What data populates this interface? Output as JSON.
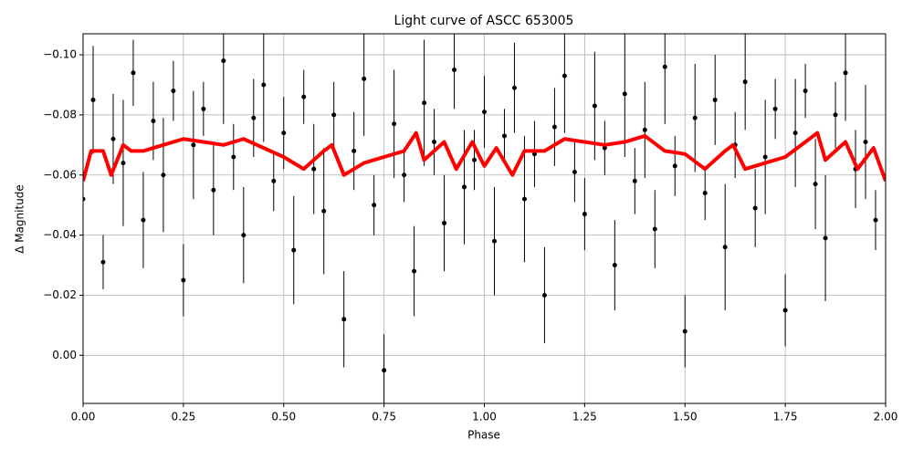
{
  "chart_data": {
    "type": "scatter",
    "title": "Light curve of ASCC 653005",
    "x_label": "Phase",
    "y_label": "Δ Magnitude",
    "xlim": [
      0,
      2
    ],
    "ylim": [
      0.016,
      -0.107
    ],
    "xticks": [
      {
        "value": 0,
        "label": "0.00"
      },
      {
        "value": 0.25,
        "label": "0.25"
      },
      {
        "value": 0.5,
        "label": "0.50"
      },
      {
        "value": 0.75,
        "label": "0.75"
      },
      {
        "value": 1,
        "label": "1.00"
      },
      {
        "value": 1.25,
        "label": "1.25"
      },
      {
        "value": 1.5,
        "label": "1.50"
      },
      {
        "value": 1.75,
        "label": "1.75"
      },
      {
        "value": 2,
        "label": "2.00"
      }
    ],
    "yticks": [
      {
        "value": -0.1,
        "label": "−0.10"
      },
      {
        "value": -0.08,
        "label": "−0.08"
      },
      {
        "value": -0.06,
        "label": "−0.06"
      },
      {
        "value": -0.04,
        "label": "−0.04"
      },
      {
        "value": -0.02,
        "label": "−0.02"
      },
      {
        "value": 0,
        "label": "0.00"
      }
    ],
    "grid": true,
    "series": [
      {
        "type": "errorbar",
        "color": "#000000",
        "x": [
          0,
          0.025,
          0.05,
          0.075,
          0.1,
          0.125,
          0.15,
          0.175,
          0.2,
          0.225,
          0.25,
          0.275,
          0.3,
          0.325,
          0.35,
          0.375,
          0.4,
          0.425,
          0.45,
          0.475,
          0.5,
          0.525,
          0.55,
          0.575,
          0.6,
          0.625,
          0.65,
          0.675,
          0.7,
          0.725,
          0.75,
          0.775,
          0.8,
          0.825,
          0.85,
          0.875,
          0.9,
          0.925,
          0.95,
          0.975,
          1,
          1.025,
          1.05,
          1.075,
          1.1,
          1.125,
          1.15,
          1.175,
          1.2,
          1.225,
          1.25,
          1.275,
          1.3,
          1.325,
          1.35,
          1.375,
          1.4,
          1.425,
          1.45,
          1.475,
          1.5,
          1.525,
          1.55,
          1.575,
          1.6,
          1.625,
          1.65,
          1.675,
          1.7,
          1.725,
          1.75,
          1.775,
          1.8,
          1.825,
          1.85,
          1.875,
          1.9,
          1.925,
          1.95,
          1.975
        ],
        "values": [
          -0.052,
          -0.085,
          -0.031,
          -0.072,
          -0.064,
          -0.094,
          -0.045,
          -0.078,
          -0.06,
          -0.088,
          -0.025,
          -0.07,
          -0.082,
          -0.055,
          -0.098,
          -0.066,
          -0.04,
          -0.079,
          -0.09,
          -0.058,
          -0.074,
          -0.035,
          -0.086,
          -0.062,
          -0.048,
          -0.08,
          -0.012,
          -0.068,
          -0.092,
          -0.05,
          0.005,
          -0.077,
          -0.06,
          -0.028,
          -0.084,
          -0.071,
          -0.044,
          -0.095,
          -0.056,
          -0.065,
          -0.081,
          -0.038,
          -0.073,
          -0.089,
          -0.052,
          -0.067,
          -0.02,
          -0.076,
          -0.093,
          -0.061,
          -0.047,
          -0.083,
          -0.069,
          -0.03,
          -0.087,
          -0.058,
          -0.075,
          -0.042,
          -0.096,
          -0.063,
          -0.008,
          -0.079,
          -0.054,
          -0.085,
          -0.036,
          -0.07,
          -0.091,
          -0.049,
          -0.066,
          -0.082,
          -0.015,
          -0.074,
          -0.088,
          -0.057,
          -0.039,
          -0.08,
          -0.094,
          -0.062,
          -0.071,
          -0.045
        ],
        "errors": [
          0.012,
          0.018,
          0.009,
          0.015,
          0.021,
          0.011,
          0.016,
          0.013,
          0.019,
          0.01,
          0.012,
          0.018,
          0.009,
          0.015,
          0.021,
          0.011,
          0.016,
          0.013,
          0.019,
          0.01,
          0.012,
          0.018,
          0.009,
          0.015,
          0.021,
          0.011,
          0.016,
          0.013,
          0.019,
          0.01,
          0.012,
          0.018,
          0.009,
          0.015,
          0.021,
          0.011,
          0.016,
          0.013,
          0.019,
          0.01,
          0.012,
          0.018,
          0.009,
          0.015,
          0.021,
          0.011,
          0.016,
          0.013,
          0.019,
          0.01,
          0.012,
          0.018,
          0.009,
          0.015,
          0.021,
          0.011,
          0.016,
          0.013,
          0.019,
          0.01,
          0.012,
          0.018,
          0.009,
          0.015,
          0.021,
          0.011,
          0.016,
          0.013,
          0.019,
          0.01,
          0.012,
          0.018,
          0.009,
          0.015,
          0.021,
          0.011,
          0.016,
          0.013,
          0.019,
          0.01
        ]
      },
      {
        "type": "line",
        "color": "#ff0000",
        "x": [
          0,
          0.02,
          0.05,
          0.07,
          0.1,
          0.12,
          0.15,
          0.2,
          0.25,
          0.3,
          0.35,
          0.4,
          0.45,
          0.5,
          0.55,
          0.6,
          0.62,
          0.65,
          0.7,
          0.75,
          0.8,
          0.83,
          0.85,
          0.9,
          0.93,
          0.97,
          1,
          1.03,
          1.07,
          1.1,
          1.15,
          1.2,
          1.25,
          1.3,
          1.35,
          1.4,
          1.45,
          1.5,
          1.55,
          1.6,
          1.62,
          1.65,
          1.7,
          1.75,
          1.78,
          1.83,
          1.85,
          1.9,
          1.93,
          1.97,
          2
        ],
        "values": [
          -0.058,
          -0.068,
          -0.068,
          -0.06,
          -0.07,
          -0.068,
          -0.068,
          -0.07,
          -0.072,
          -0.071,
          -0.07,
          -0.072,
          -0.069,
          -0.066,
          -0.062,
          -0.068,
          -0.07,
          -0.06,
          -0.064,
          -0.066,
          -0.068,
          -0.074,
          -0.065,
          -0.071,
          -0.062,
          -0.071,
          -0.063,
          -0.069,
          -0.06,
          -0.068,
          -0.068,
          -0.072,
          -0.071,
          -0.07,
          -0.071,
          -0.073,
          -0.068,
          -0.067,
          -0.062,
          -0.068,
          -0.07,
          -0.062,
          -0.064,
          -0.066,
          -0.069,
          -0.074,
          -0.065,
          -0.071,
          -0.062,
          -0.069,
          -0.058
        ]
      }
    ]
  }
}
